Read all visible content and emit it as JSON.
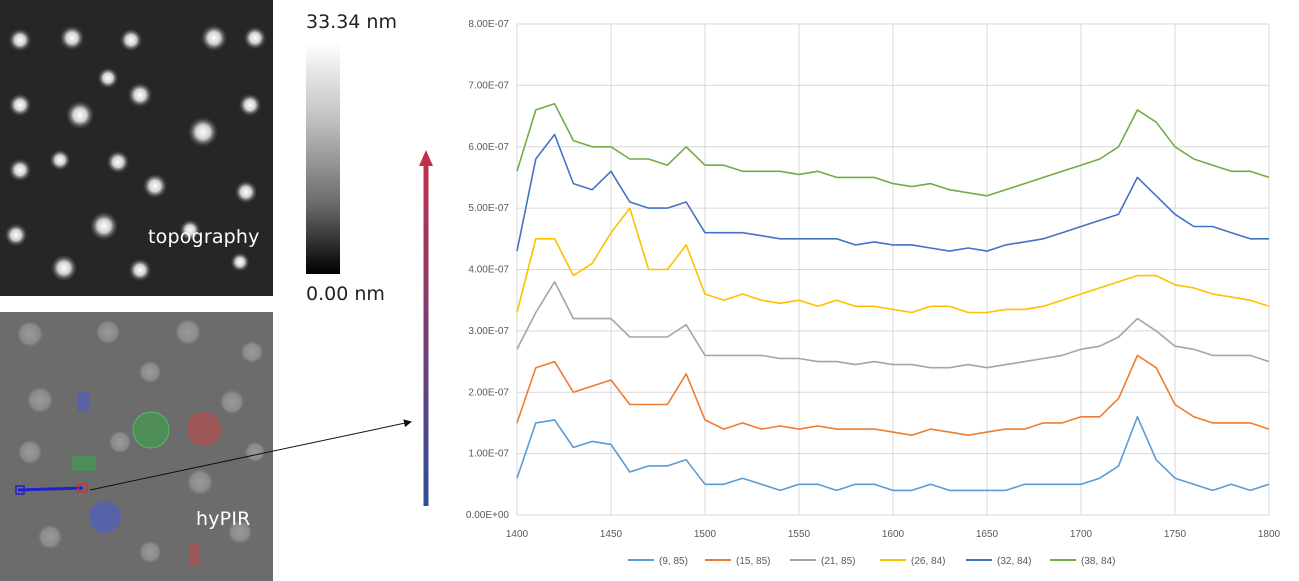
{
  "topography_panel": {
    "label": "topography"
  },
  "hypir_panel": {
    "label": "hyPIR"
  },
  "colorbar": {
    "max_label": "33.34 nm",
    "min_label": "0.00 nm"
  },
  "colors": {
    "arrow_top": "#c0304a",
    "arrow_bottom": "#2f4f9a",
    "grid": "#d9d9d9"
  },
  "chart_data": {
    "type": "line",
    "title": "",
    "xlabel": "",
    "ylabel": "",
    "xlim": [
      1400,
      1800
    ],
    "ylim": [
      0,
      8e-07
    ],
    "x_ticks": [
      "1400",
      "1450",
      "1500",
      "1550",
      "1600",
      "1650",
      "1700",
      "1750",
      "1800"
    ],
    "y_ticks": [
      "0.00E+00",
      "1.00E-07",
      "2.00E-07",
      "3.00E-07",
      "4.00E-07",
      "5.00E-07",
      "6.00E-07",
      "7.00E-07",
      "8.00E-07"
    ],
    "grid": true,
    "legend_position": "bottom",
    "x": [
      1400,
      1410,
      1420,
      1430,
      1440,
      1450,
      1460,
      1470,
      1480,
      1490,
      1500,
      1510,
      1520,
      1530,
      1540,
      1550,
      1560,
      1570,
      1580,
      1590,
      1600,
      1610,
      1620,
      1630,
      1640,
      1650,
      1660,
      1670,
      1680,
      1690,
      1700,
      1710,
      1720,
      1730,
      1740,
      1750,
      1760,
      1770,
      1780,
      1790,
      1800
    ],
    "series": [
      {
        "name": "(9, 85)",
        "color": "#5b9bd5",
        "values": [
          6e-08,
          1.5e-07,
          1.55e-07,
          1.1e-07,
          1.2e-07,
          1.15e-07,
          7e-08,
          8e-08,
          8e-08,
          9e-08,
          5e-08,
          5e-08,
          6e-08,
          5e-08,
          4e-08,
          5e-08,
          5e-08,
          4e-08,
          5e-08,
          5e-08,
          4e-08,
          4e-08,
          5e-08,
          4e-08,
          4e-08,
          4e-08,
          4e-08,
          5e-08,
          5e-08,
          5e-08,
          5e-08,
          6e-08,
          8e-08,
          1.6e-07,
          9e-08,
          6e-08,
          5e-08,
          4e-08,
          5e-08,
          4e-08,
          5e-08
        ]
      },
      {
        "name": "(15, 85)",
        "color": "#ed7d31",
        "values": [
          1.5e-07,
          2.4e-07,
          2.5e-07,
          2e-07,
          2.1e-07,
          2.2e-07,
          1.8e-07,
          1.8e-07,
          1.8e-07,
          2.3e-07,
          1.55e-07,
          1.4e-07,
          1.5e-07,
          1.4e-07,
          1.45e-07,
          1.4e-07,
          1.45e-07,
          1.4e-07,
          1.4e-07,
          1.4e-07,
          1.35e-07,
          1.3e-07,
          1.4e-07,
          1.35e-07,
          1.3e-07,
          1.35e-07,
          1.4e-07,
          1.4e-07,
          1.5e-07,
          1.5e-07,
          1.6e-07,
          1.6e-07,
          1.9e-07,
          2.6e-07,
          2.4e-07,
          1.8e-07,
          1.6e-07,
          1.5e-07,
          1.5e-07,
          1.5e-07,
          1.4e-07
        ]
      },
      {
        "name": "(21, 85)",
        "color": "#a5a5a5",
        "values": [
          2.7e-07,
          3.3e-07,
          3.8e-07,
          3.2e-07,
          3.2e-07,
          3.2e-07,
          2.9e-07,
          2.9e-07,
          2.9e-07,
          3.1e-07,
          2.6e-07,
          2.6e-07,
          2.6e-07,
          2.6e-07,
          2.55e-07,
          2.55e-07,
          2.5e-07,
          2.5e-07,
          2.45e-07,
          2.5e-07,
          2.45e-07,
          2.45e-07,
          2.4e-07,
          2.4e-07,
          2.45e-07,
          2.4e-07,
          2.45e-07,
          2.5e-07,
          2.55e-07,
          2.6e-07,
          2.7e-07,
          2.75e-07,
          2.9e-07,
          3.2e-07,
          3e-07,
          2.75e-07,
          2.7e-07,
          2.6e-07,
          2.6e-07,
          2.6e-07,
          2.5e-07
        ]
      },
      {
        "name": "(26, 84)",
        "color": "#ffc000",
        "values": [
          3.3e-07,
          4.5e-07,
          4.5e-07,
          3.9e-07,
          4.1e-07,
          4.6e-07,
          5e-07,
          4e-07,
          4e-07,
          4.4e-07,
          3.6e-07,
          3.5e-07,
          3.6e-07,
          3.5e-07,
          3.45e-07,
          3.5e-07,
          3.4e-07,
          3.5e-07,
          3.4e-07,
          3.4e-07,
          3.35e-07,
          3.3e-07,
          3.4e-07,
          3.4e-07,
          3.3e-07,
          3.3e-07,
          3.35e-07,
          3.35e-07,
          3.4e-07,
          3.5e-07,
          3.6e-07,
          3.7e-07,
          3.8e-07,
          3.9e-07,
          3.9e-07,
          3.75e-07,
          3.7e-07,
          3.6e-07,
          3.55e-07,
          3.5e-07,
          3.4e-07
        ]
      },
      {
        "name": "(32, 84)",
        "color": "#4472c4",
        "values": [
          4.3e-07,
          5.8e-07,
          6.2e-07,
          5.4e-07,
          5.3e-07,
          5.6e-07,
          5.1e-07,
          5e-07,
          5e-07,
          5.1e-07,
          4.6e-07,
          4.6e-07,
          4.6e-07,
          4.55e-07,
          4.5e-07,
          4.5e-07,
          4.5e-07,
          4.5e-07,
          4.4e-07,
          4.45e-07,
          4.4e-07,
          4.4e-07,
          4.35e-07,
          4.3e-07,
          4.35e-07,
          4.3e-07,
          4.4e-07,
          4.45e-07,
          4.5e-07,
          4.6e-07,
          4.7e-07,
          4.8e-07,
          4.9e-07,
          5.5e-07,
          5.2e-07,
          4.9e-07,
          4.7e-07,
          4.7e-07,
          4.6e-07,
          4.5e-07,
          4.5e-07
        ]
      },
      {
        "name": "(38, 84)",
        "color": "#70ad47",
        "values": [
          5.6e-07,
          6.6e-07,
          6.7e-07,
          6.1e-07,
          6e-07,
          6e-07,
          5.8e-07,
          5.8e-07,
          5.7e-07,
          6e-07,
          5.7e-07,
          5.7e-07,
          5.6e-07,
          5.6e-07,
          5.6e-07,
          5.55e-07,
          5.6e-07,
          5.5e-07,
          5.5e-07,
          5.5e-07,
          5.4e-07,
          5.35e-07,
          5.4e-07,
          5.3e-07,
          5.25e-07,
          5.2e-07,
          5.3e-07,
          5.4e-07,
          5.5e-07,
          5.6e-07,
          5.7e-07,
          5.8e-07,
          6e-07,
          6.6e-07,
          6.4e-07,
          6e-07,
          5.8e-07,
          5.7e-07,
          5.6e-07,
          5.6e-07,
          5.5e-07
        ]
      }
    ]
  }
}
